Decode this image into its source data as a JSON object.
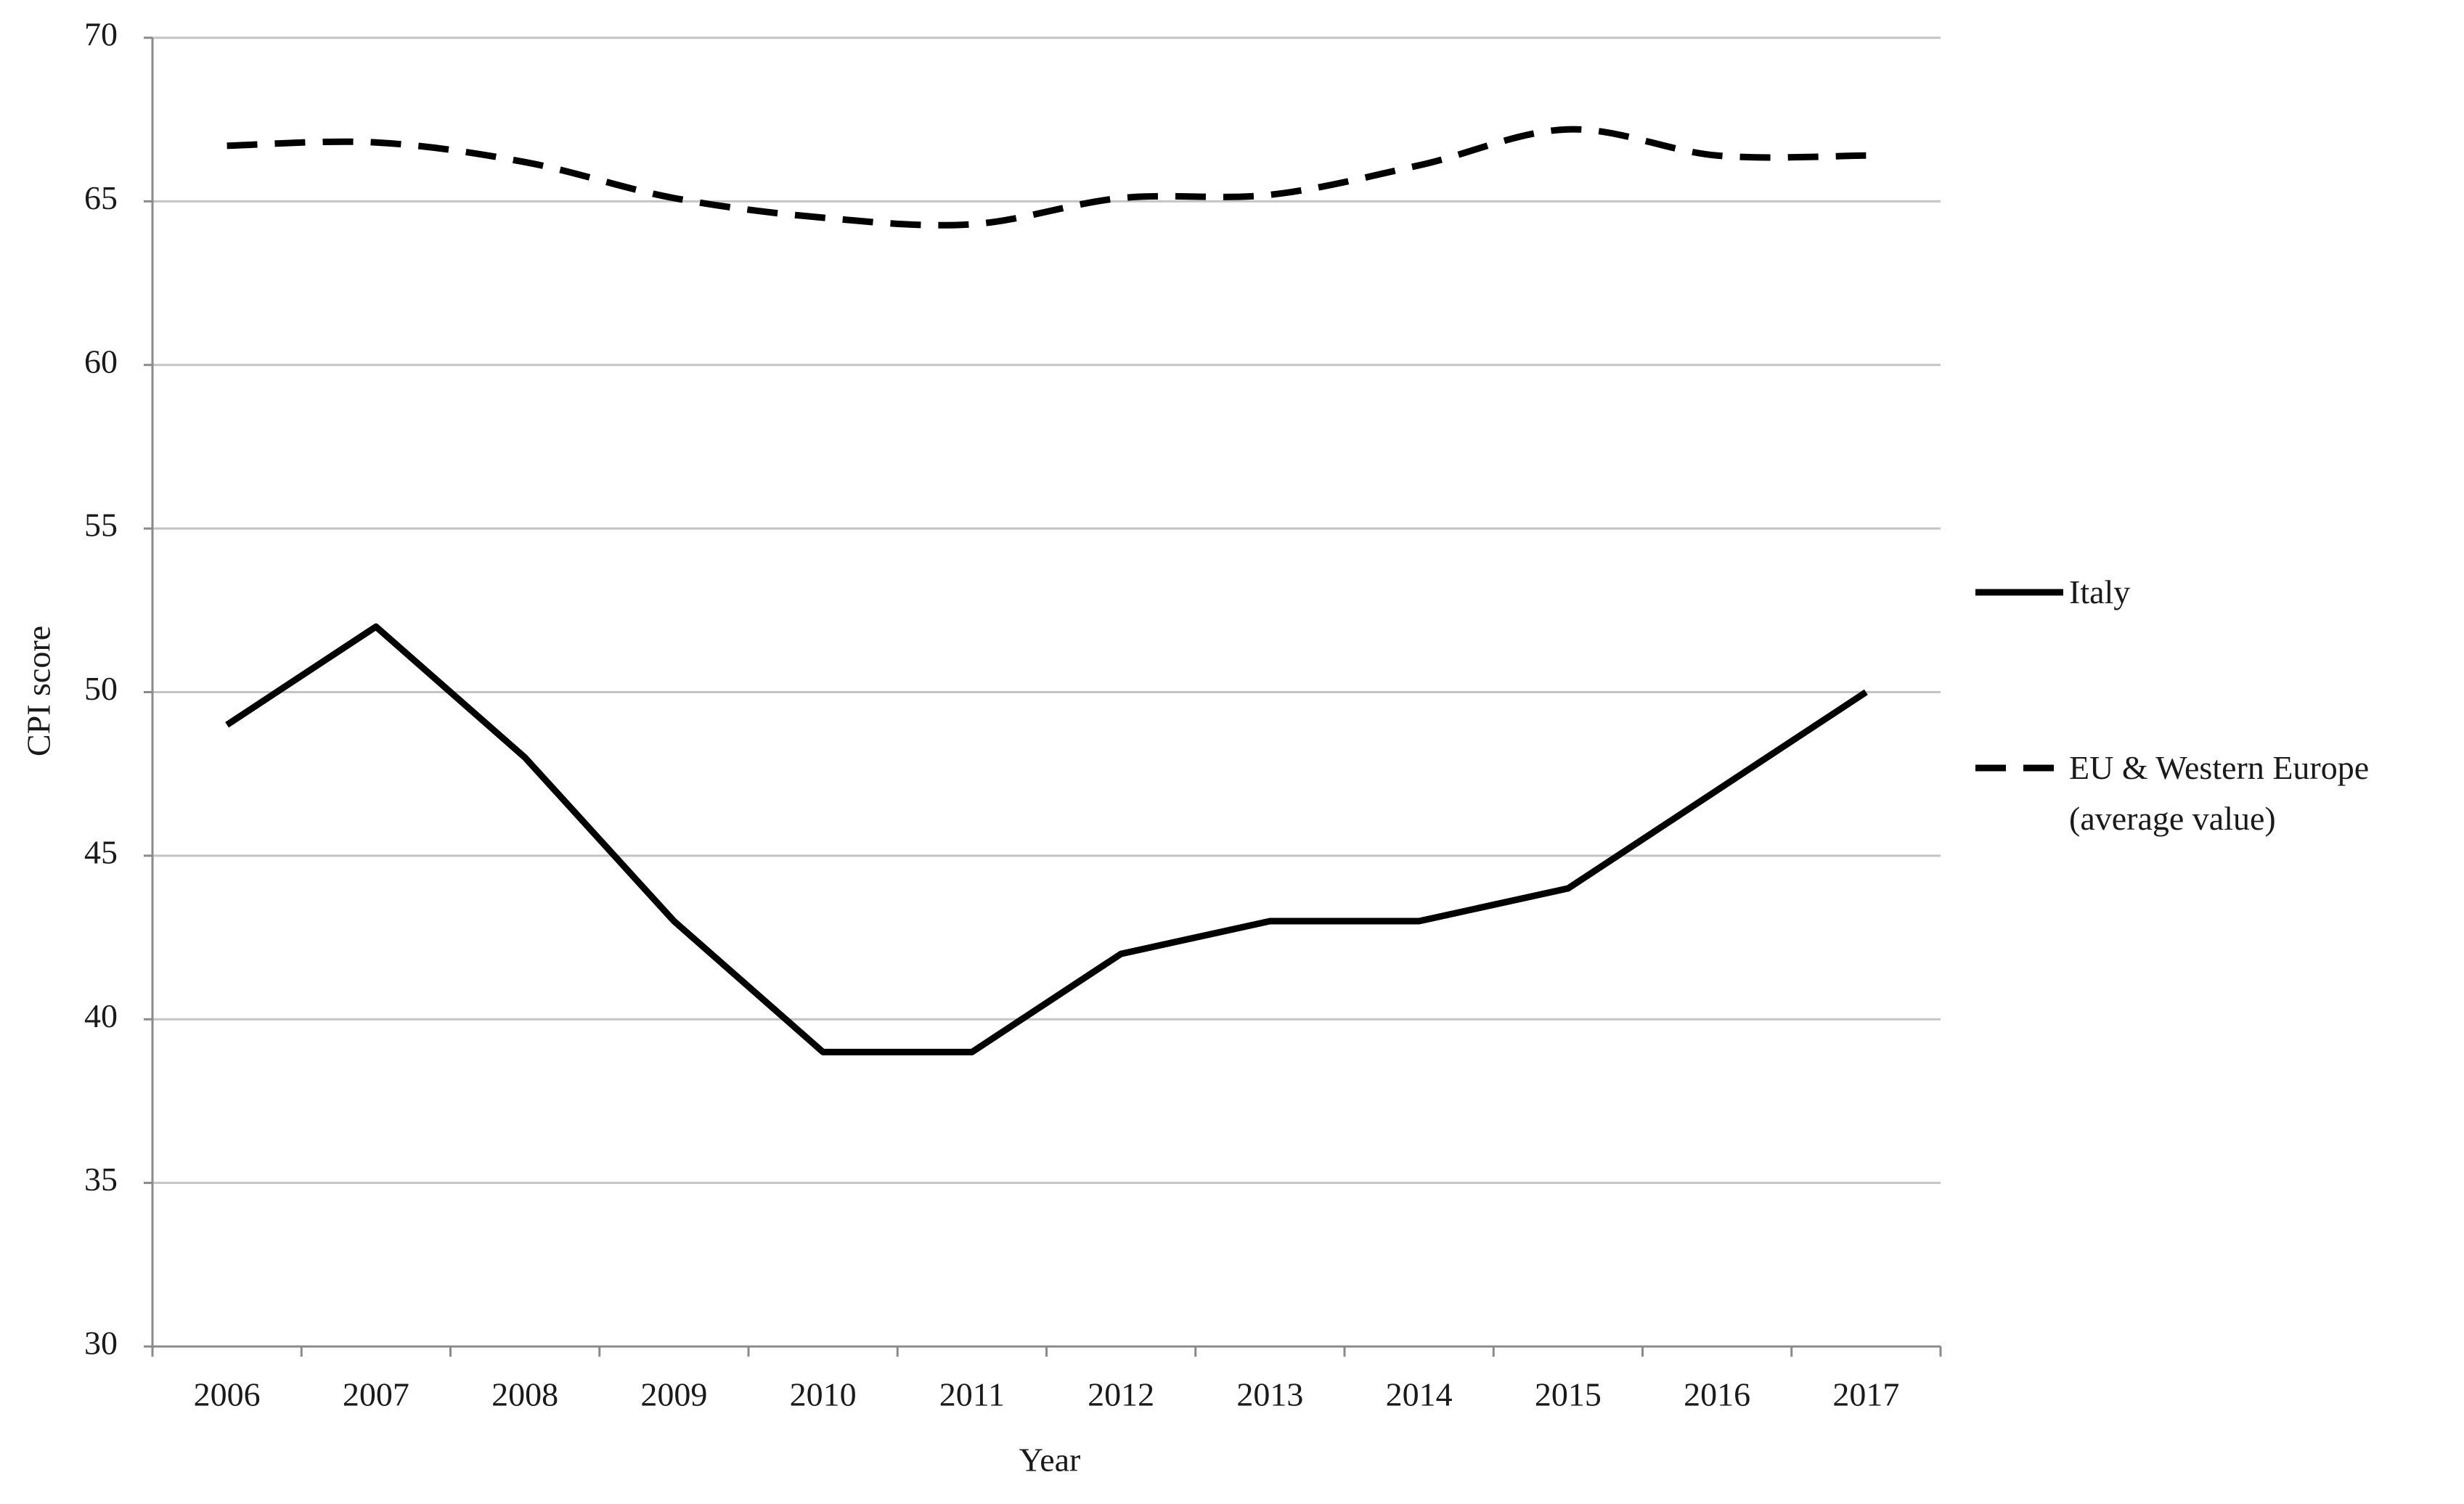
{
  "chart_data": {
    "type": "line",
    "x_label": "Year",
    "y_label": "CPI score",
    "categories": [
      "2006",
      "2007",
      "2008",
      "2009",
      "2010",
      "2011",
      "2012",
      "2013",
      "2014",
      "2015",
      "2016",
      "2017"
    ],
    "series": [
      {
        "name": "Italy",
        "color": "#000000",
        "style": "solid",
        "smooth": false,
        "values": [
          49,
          52,
          48,
          43,
          39,
          39,
          42,
          43,
          43,
          44,
          47,
          50
        ]
      },
      {
        "name": "EU & Western Europe (average value)",
        "color": "#000000",
        "style": "dashed",
        "smooth": true,
        "values": [
          66.7,
          66.8,
          66.2,
          65.1,
          64.5,
          64.3,
          65.1,
          65.2,
          66.1,
          67.2,
          66.4,
          66.4
        ]
      }
    ],
    "ylim": [
      30,
      70
    ],
    "yticks": [
      30,
      35,
      40,
      45,
      50,
      55,
      60,
      65,
      70
    ],
    "grid": true,
    "legend": "right"
  }
}
